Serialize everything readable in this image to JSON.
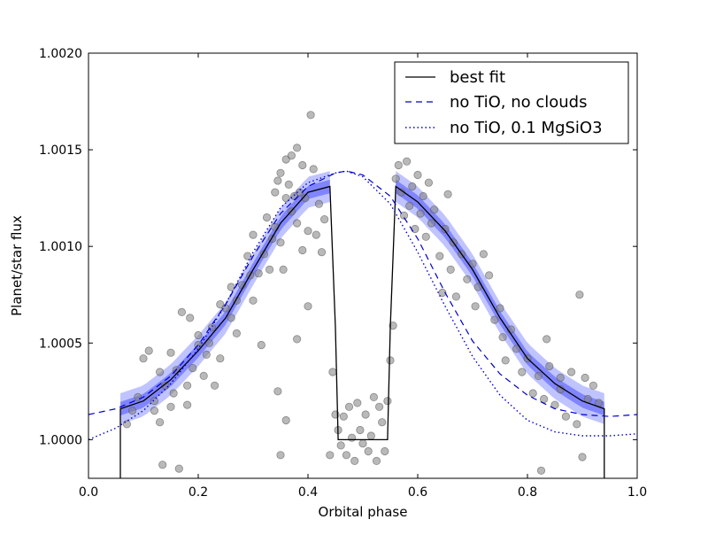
{
  "chart_data": {
    "type": "line",
    "title": "",
    "xlabel": "Orbital phase",
    "ylabel": "Planet/star flux",
    "xlim": [
      0.0,
      1.0
    ],
    "ylim": [
      0.9998,
      1.002
    ],
    "xticks": [
      "0.0",
      "0.2",
      "0.4",
      "0.6",
      "0.8",
      "1.0"
    ],
    "yticks": [
      "1.0000",
      "1.0005",
      "1.0010",
      "1.0015",
      "1.0020"
    ],
    "grid": false,
    "legend_position": "top-right",
    "colors": {
      "best_fit": "#000000",
      "model": "#0000cc",
      "band_outer": "#aab0ff",
      "band_inner": "#6b70ff",
      "points": "#808080"
    },
    "series": [
      {
        "name": "best fit",
        "style": "solid",
        "points": [
          [
            0.058,
            0.9998
          ],
          [
            0.058,
            1.00016
          ],
          [
            0.1,
            1.0002
          ],
          [
            0.15,
            1.00031
          ],
          [
            0.2,
            1.00046
          ],
          [
            0.25,
            1.00063
          ],
          [
            0.3,
            1.00088
          ],
          [
            0.35,
            1.00112
          ],
          [
            0.4,
            1.00128
          ],
          [
            0.44,
            1.00131
          ],
          [
            0.45,
            1.00058
          ],
          [
            0.455,
            1.0
          ],
          [
            0.545,
            1.0
          ],
          [
            0.55,
            1.00058
          ],
          [
            0.56,
            1.00131
          ],
          [
            0.6,
            1.00123
          ],
          [
            0.65,
            1.00108
          ],
          [
            0.7,
            1.00088
          ],
          [
            0.75,
            1.00063
          ],
          [
            0.8,
            1.00042
          ],
          [
            0.85,
            1.00029
          ],
          [
            0.9,
            1.0002
          ],
          [
            0.94,
            1.00016
          ],
          [
            0.94,
            0.9998
          ]
        ]
      },
      {
        "name": "no TiO, no clouds",
        "style": "dashed",
        "points": [
          [
            0.0,
            1.00013
          ],
          [
            0.05,
            1.00016
          ],
          [
            0.1,
            1.00022
          ],
          [
            0.15,
            1.00033
          ],
          [
            0.2,
            1.00049
          ],
          [
            0.25,
            1.0007
          ],
          [
            0.3,
            1.00095
          ],
          [
            0.35,
            1.00117
          ],
          [
            0.4,
            1.00131
          ],
          [
            0.45,
            1.00138
          ],
          [
            0.47,
            1.00139
          ],
          [
            0.5,
            1.00137
          ],
          [
            0.55,
            1.00126
          ],
          [
            0.6,
            1.00104
          ],
          [
            0.65,
            1.00076
          ],
          [
            0.7,
            1.00051
          ],
          [
            0.75,
            1.00034
          ],
          [
            0.8,
            1.00023
          ],
          [
            0.85,
            1.00016
          ],
          [
            0.9,
            1.00013
          ],
          [
            0.95,
            1.00012
          ],
          [
            1.0,
            1.00013
          ]
        ]
      },
      {
        "name": "no TiO, 0.1 MgSiO3",
        "style": "dotted",
        "points": [
          [
            0.0,
            1.0
          ],
          [
            0.05,
            1.00006
          ],
          [
            0.1,
            1.00015
          ],
          [
            0.15,
            1.00029
          ],
          [
            0.2,
            1.00047
          ],
          [
            0.25,
            1.0007
          ],
          [
            0.3,
            1.00097
          ],
          [
            0.35,
            1.0012
          ],
          [
            0.4,
            1.00133
          ],
          [
            0.45,
            1.00138
          ],
          [
            0.47,
            1.00139
          ],
          [
            0.5,
            1.00136
          ],
          [
            0.55,
            1.00122
          ],
          [
            0.6,
            1.00097
          ],
          [
            0.65,
            1.00069
          ],
          [
            0.7,
            1.00043
          ],
          [
            0.75,
            1.00023
          ],
          [
            0.8,
            1.0001
          ],
          [
            0.85,
            1.00004
          ],
          [
            0.9,
            1.00002
          ],
          [
            0.95,
            1.00002
          ],
          [
            1.0,
            1.00003
          ]
        ]
      }
    ],
    "uncertainty_band": {
      "outer_half_width": 8e-05,
      "inner_half_width": 3.5e-05,
      "segments": [
        [
          0.058,
          0.44
        ],
        [
          0.56,
          0.94
        ]
      ]
    },
    "scatter_points": [
      [
        0.07,
        1.00008
      ],
      [
        0.08,
        1.00015
      ],
      [
        0.09,
        1.00022
      ],
      [
        0.1,
        1.00042
      ],
      [
        0.11,
        1.00046
      ],
      [
        0.12,
        1.00015
      ],
      [
        0.12,
        1.0002
      ],
      [
        0.13,
        1.00009
      ],
      [
        0.13,
        1.00035
      ],
      [
        0.135,
        0.99987
      ],
      [
        0.14,
        1.00028
      ],
      [
        0.15,
        1.00017
      ],
      [
        0.15,
        1.00045
      ],
      [
        0.155,
        1.00024
      ],
      [
        0.16,
        1.00036
      ],
      [
        0.165,
        0.99985
      ],
      [
        0.17,
        1.00066
      ],
      [
        0.18,
        1.00018
      ],
      [
        0.18,
        1.00028
      ],
      [
        0.185,
        1.00063
      ],
      [
        0.19,
        1.00037
      ],
      [
        0.2,
        1.00049
      ],
      [
        0.2,
        1.00054
      ],
      [
        0.21,
        1.00033
      ],
      [
        0.215,
        1.00044
      ],
      [
        0.22,
        1.0005
      ],
      [
        0.225,
        1.00058
      ],
      [
        0.23,
        1.00028
      ],
      [
        0.24,
        1.00042
      ],
      [
        0.24,
        1.0007
      ],
      [
        0.25,
        1.00068
      ],
      [
        0.26,
        1.00063
      ],
      [
        0.26,
        1.00079
      ],
      [
        0.27,
        1.00072
      ],
      [
        0.27,
        1.00055
      ],
      [
        0.28,
        1.0008
      ],
      [
        0.29,
        1.00095
      ],
      [
        0.295,
        1.00085
      ],
      [
        0.3,
        1.00072
      ],
      [
        0.3,
        1.00106
      ],
      [
        0.31,
        1.00086
      ],
      [
        0.315,
        1.00049
      ],
      [
        0.32,
        1.00096
      ],
      [
        0.325,
        1.00115
      ],
      [
        0.33,
        1.00088
      ],
      [
        0.335,
        1.00104
      ],
      [
        0.34,
        1.00128
      ],
      [
        0.34,
        1.0011
      ],
      [
        0.345,
        1.00134
      ],
      [
        0.35,
        1.00102
      ],
      [
        0.35,
        1.00138
      ],
      [
        0.355,
        1.00088
      ],
      [
        0.36,
        1.00125
      ],
      [
        0.36,
        1.00145
      ],
      [
        0.365,
        1.00132
      ],
      [
        0.37,
        1.00118
      ],
      [
        0.37,
        1.00147
      ],
      [
        0.375,
        1.00126
      ],
      [
        0.38,
        1.00112
      ],
      [
        0.38,
        1.00151
      ],
      [
        0.385,
        1.00128
      ],
      [
        0.39,
        1.00098
      ],
      [
        0.39,
        1.00142
      ],
      [
        0.395,
        1.00125
      ],
      [
        0.4,
        1.00108
      ],
      [
        0.405,
        1.00168
      ],
      [
        0.41,
        1.0014
      ],
      [
        0.415,
        1.00106
      ],
      [
        0.42,
        1.00122
      ],
      [
        0.425,
        1.00097
      ],
      [
        0.43,
        1.00114
      ],
      [
        0.345,
        1.00025
      ],
      [
        0.35,
        0.99992
      ],
      [
        0.36,
        1.0001
      ],
      [
        0.38,
        1.00052
      ],
      [
        0.4,
        1.00069
      ],
      [
        0.44,
        0.99992
      ],
      [
        0.445,
        1.00035
      ],
      [
        0.45,
        1.00013
      ],
      [
        0.455,
        1.00005
      ],
      [
        0.46,
        0.99997
      ],
      [
        0.465,
        1.00012
      ],
      [
        0.47,
        0.99992
      ],
      [
        0.475,
        1.00017
      ],
      [
        0.48,
        1.00001
      ],
      [
        0.485,
        0.99989
      ],
      [
        0.49,
        1.00019
      ],
      [
        0.495,
        1.00005
      ],
      [
        0.5,
        0.99998
      ],
      [
        0.505,
        1.00013
      ],
      [
        0.51,
        0.99994
      ],
      [
        0.515,
        1.00002
      ],
      [
        0.52,
        1.00022
      ],
      [
        0.525,
        0.99989
      ],
      [
        0.53,
        1.00017
      ],
      [
        0.535,
        1.00009
      ],
      [
        0.54,
        0.99994
      ],
      [
        0.545,
        1.0002
      ],
      [
        0.55,
        1.00041
      ],
      [
        0.555,
        1.00059
      ],
      [
        0.56,
        1.00135
      ],
      [
        0.565,
        1.00142
      ],
      [
        0.57,
        1.00128
      ],
      [
        0.575,
        1.00116
      ],
      [
        0.58,
        1.00144
      ],
      [
        0.585,
        1.00121
      ],
      [
        0.59,
        1.00131
      ],
      [
        0.595,
        1.00109
      ],
      [
        0.6,
        1.00137
      ],
      [
        0.605,
        1.00117
      ],
      [
        0.61,
        1.00126
      ],
      [
        0.615,
        1.00105
      ],
      [
        0.62,
        1.00133
      ],
      [
        0.625,
        1.00112
      ],
      [
        0.63,
        1.00119
      ],
      [
        0.64,
        1.00095
      ],
      [
        0.645,
        1.00076
      ],
      [
        0.65,
        1.00109
      ],
      [
        0.655,
        1.00127
      ],
      [
        0.66,
        1.00088
      ],
      [
        0.665,
        1.00102
      ],
      [
        0.67,
        1.00074
      ],
      [
        0.68,
        1.00096
      ],
      [
        0.69,
        1.00083
      ],
      [
        0.7,
        1.00091
      ],
      [
        0.705,
        1.00069
      ],
      [
        0.71,
        1.00079
      ],
      [
        0.72,
        1.00096
      ],
      [
        0.73,
        1.00085
      ],
      [
        0.74,
        1.00062
      ],
      [
        0.75,
        1.00068
      ],
      [
        0.755,
        1.00053
      ],
      [
        0.76,
        1.00041
      ],
      [
        0.77,
        1.00057
      ],
      [
        0.78,
        1.00047
      ],
      [
        0.79,
        1.00035
      ],
      [
        0.8,
        1.00042
      ],
      [
        0.81,
        1.00024
      ],
      [
        0.82,
        1.00033
      ],
      [
        0.83,
        1.00021
      ],
      [
        0.84,
        1.00038
      ],
      [
        0.85,
        1.00018
      ],
      [
        0.86,
        1.00026
      ],
      [
        0.87,
        1.00012
      ],
      [
        0.88,
        1.00035
      ],
      [
        0.89,
        1.00008
      ],
      [
        0.9,
        0.99991
      ],
      [
        0.91,
        1.00021
      ],
      [
        0.92,
        1.00028
      ],
      [
        0.93,
        1.00019
      ],
      [
        0.825,
        0.99984
      ],
      [
        0.835,
        1.00052
      ],
      [
        0.895,
        1.00075
      ],
      [
        0.905,
        1.00032
      ],
      [
        0.86,
        1.00032
      ]
    ]
  }
}
